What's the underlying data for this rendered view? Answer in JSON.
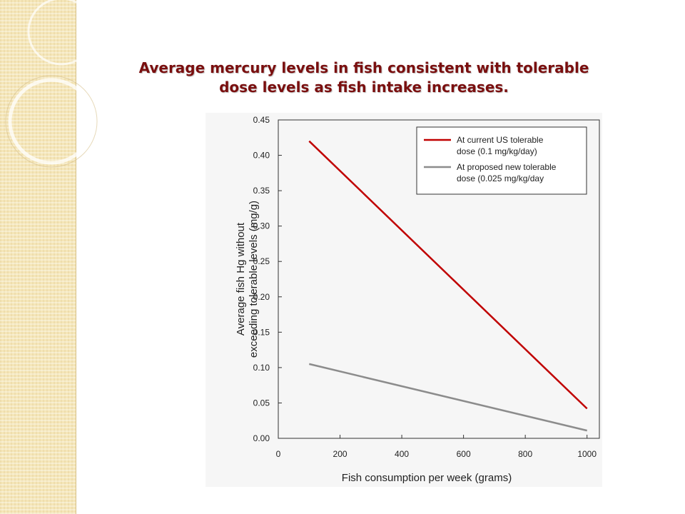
{
  "slide": {
    "title_line1": "Average mercury levels in fish consistent with tolerable",
    "title_line2": "dose levels as fish intake increases."
  },
  "chart_data": {
    "type": "line",
    "title": "",
    "xlabel": "Fish consumption per week (grams)",
    "ylabel_line1": "Average fish Hg without",
    "ylabel_line2": "exceeding tolerable levels (mg/g)",
    "xlim": [
      0,
      1040
    ],
    "ylim": [
      0,
      0.45
    ],
    "x_ticks": [
      0,
      200,
      400,
      600,
      800,
      1000
    ],
    "y_ticks": [
      0,
      0.05,
      0.1,
      0.15,
      0.2,
      0.25,
      0.3,
      0.35,
      0.4,
      0.45
    ],
    "y_tick_labels": [
      "0.00",
      "0.05",
      "0.10",
      "0.15",
      "0.20",
      "0.25",
      "0.30",
      "0.35",
      "0.40",
      "0.45"
    ],
    "grid": false,
    "legend_position": "top-right",
    "series": [
      {
        "name_line1": "At current US tolerable",
        "name_line2": "dose (0.1 mg/kg/day)",
        "color": "#c00000",
        "x": [
          100,
          1000
        ],
        "y": [
          0.42,
          0.042
        ]
      },
      {
        "name_line1": "At proposed new tolerable",
        "name_line2": "dose (0.025 mg/kg/day",
        "color": "#8c8c8c",
        "x": [
          100,
          1000
        ],
        "y": [
          0.105,
          0.011
        ]
      }
    ]
  }
}
